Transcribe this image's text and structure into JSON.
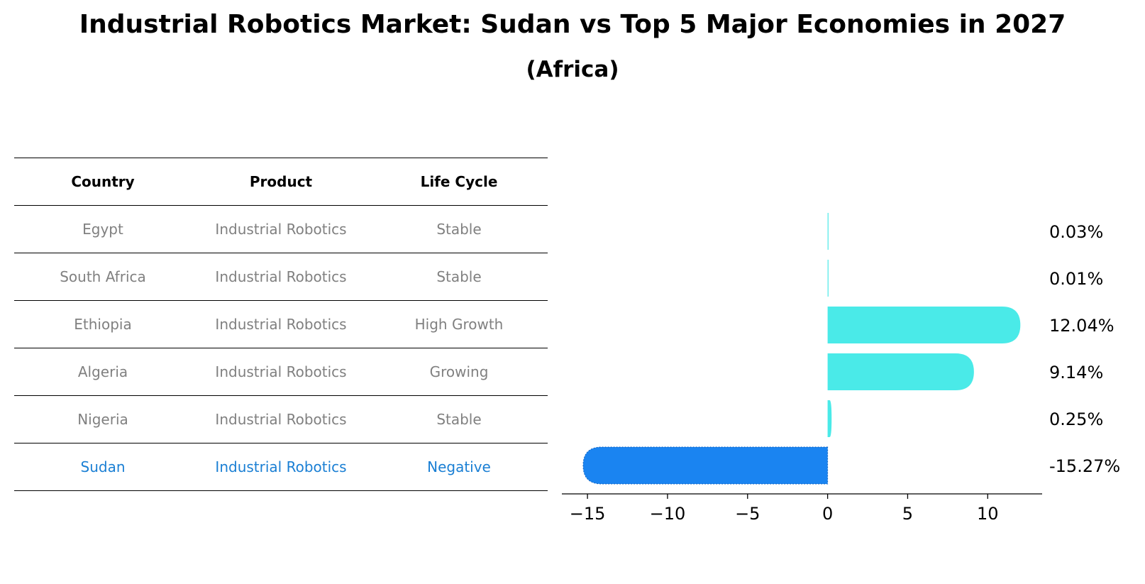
{
  "title": "Industrial Robotics Market: Sudan vs Top 5 Major Economies in 2027",
  "subtitle": "(Africa)",
  "table": {
    "headers": [
      "Country",
      "Product",
      "Life Cycle"
    ],
    "rows": [
      {
        "country": "Egypt",
        "product": "Industrial Robotics",
        "life_cycle": "Stable"
      },
      {
        "country": "South Africa",
        "product": "Industrial Robotics",
        "life_cycle": "Stable"
      },
      {
        "country": "Ethiopia",
        "product": "Industrial Robotics",
        "life_cycle": "High Growth"
      },
      {
        "country": "Algeria",
        "product": "Industrial Robotics",
        "life_cycle": "Growing"
      },
      {
        "country": "Nigeria",
        "product": "Industrial Robotics",
        "life_cycle": "Stable"
      },
      {
        "country": "Sudan",
        "product": "Industrial Robotics",
        "life_cycle": "Negative"
      }
    ],
    "highlight_row": "Sudan",
    "colors": {
      "header_text": "#000000",
      "row_text": "#808080",
      "highlight_text": "#1a7fd4",
      "rule": "#000000"
    }
  },
  "chart_data": {
    "type": "bar",
    "orientation": "horizontal",
    "categories": [
      "Egypt",
      "South Africa",
      "Ethiopia",
      "Algeria",
      "Nigeria",
      "Sudan"
    ],
    "values": [
      0.03,
      0.01,
      12.04,
      9.14,
      0.25,
      -15.27
    ],
    "value_labels": [
      "0.03%",
      "0.01%",
      "12.04%",
      "9.14%",
      "0.25%",
      "-15.27%"
    ],
    "xlim": [
      -16.6,
      13.4
    ],
    "xticks": [
      -15,
      -10,
      -5,
      0,
      5,
      10
    ],
    "xtick_labels": [
      "−15",
      "−10",
      "−5",
      "0",
      "5",
      "10"
    ],
    "grid": false,
    "colors": {
      "positive": "#4aeae8",
      "highlight": "#1a84f1",
      "label": "#000000",
      "axis": "#000000"
    }
  }
}
